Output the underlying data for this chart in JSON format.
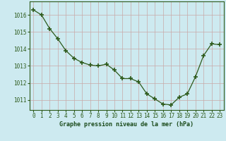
{
  "hours": [
    0,
    1,
    2,
    3,
    4,
    5,
    6,
    7,
    8,
    9,
    10,
    11,
    12,
    13,
    14,
    15,
    16,
    17,
    18,
    19,
    20,
    21,
    22,
    23
  ],
  "pressure": [
    1016.3,
    1016.0,
    1015.2,
    1014.6,
    1013.9,
    1013.45,
    1013.2,
    1013.05,
    1013.0,
    1013.1,
    1012.75,
    1012.25,
    1012.25,
    1012.05,
    1011.35,
    1011.05,
    1010.75,
    1010.7,
    1011.15,
    1011.35,
    1012.35,
    1013.6,
    1014.3,
    1014.25
  ],
  "line_color": "#2d5a1b",
  "marker_color": "#2d5a1b",
  "bg_color": "#cdeaf0",
  "grid_color": "#c8a8a8",
  "xlabel": "Graphe pression niveau de la mer (hPa)",
  "xlabel_color": "#1a4a1a",
  "ylim": [
    1010.4,
    1016.8
  ],
  "yticks": [
    1011,
    1012,
    1013,
    1014,
    1015,
    1016
  ],
  "tick_color": "#2d5a1b",
  "spine_color": "#2d5a1b",
  "tick_fontsize": 5.5,
  "xlabel_fontsize": 6.0
}
